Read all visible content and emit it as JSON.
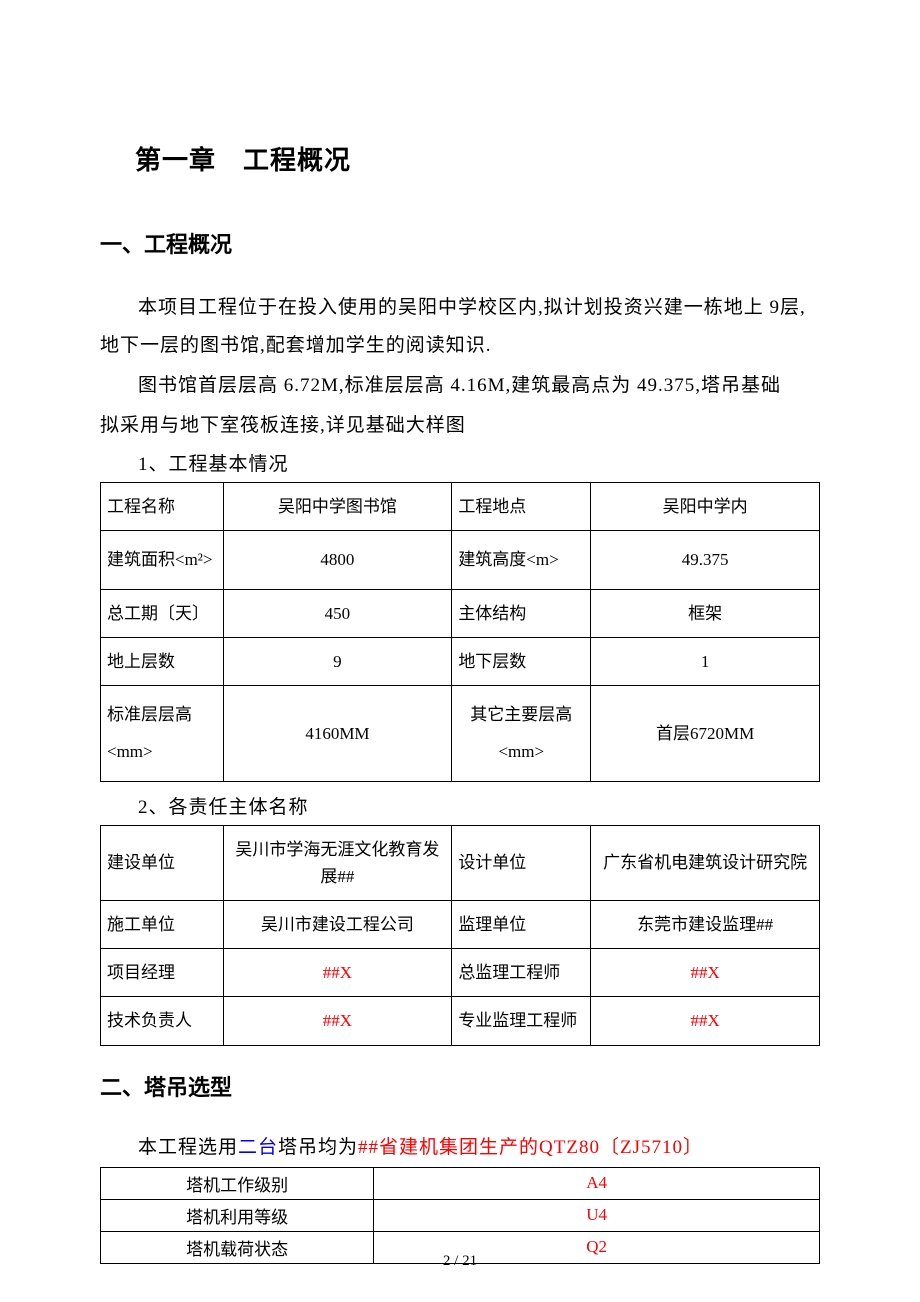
{
  "chapter": "第一章　工程概况",
  "s1": {
    "title": "一、工程概况",
    "p1": "本项目工程位于在投入使用的吴阳中学校区内,拟计划投资兴建一栋地上 9层,地下一层的图书馆,配套增加学生的阅读知识.",
    "p2a": "图书馆首层层高 6.72M,标准层层高 4.16M,建筑最高点为 49.375,塔吊基础",
    "p2b": "拟采用与地下室筏板连接,详见基础大样图",
    "sub1": "1、工程基本情况",
    "sub2": "2、各责任主体名称"
  },
  "t1": {
    "r1": {
      "l1": "工程名称",
      "v1": "吴阳中学图书馆",
      "l2": "工程地点",
      "v2": "吴阳中学内"
    },
    "r2": {
      "l1": "建筑面积<m²>",
      "v1": "4800",
      "l2": "建筑高度<m>",
      "v2": "49.375"
    },
    "r3": {
      "l1": "总工期〔天〕",
      "v1": "450",
      "l2": "主体结构",
      "v2": "框架"
    },
    "r4": {
      "l1": "地上层数",
      "v1": "9",
      "l2": "地下层数",
      "v2": "1"
    },
    "r5": {
      "l1": "标准层层高<mm>",
      "v1": "4160MM",
      "l2": "其它主要层高<mm>",
      "v2": "首层6720MM"
    }
  },
  "t2": {
    "r1": {
      "l1": "建设单位",
      "v1": "吴川市学海无涯文化教育发展##",
      "l2": "设计单位",
      "v2": "广东省机电建筑设计研究院"
    },
    "r2": {
      "l1": "施工单位",
      "v1": "吴川市建设工程公司",
      "l2": "监理单位",
      "v2": "东莞市建设监理##"
    },
    "r3": {
      "l1": "项目经理",
      "v1": "##X",
      "l2": "总监理工程师",
      "v2": "##X"
    },
    "r4": {
      "l1": "技术负责人",
      "v1": "##X",
      "l2": "专业监理工程师",
      "v2": "##X"
    }
  },
  "s2": {
    "title": "二、塔吊选型",
    "pre": "本工程选用",
    "blue": "二台",
    "mid": "塔吊均为",
    "red": "##省建机集团生产的QTZ80〔ZJ5710〕"
  },
  "t3": {
    "r1": {
      "l": "塔机工作级别",
      "v": "A4"
    },
    "r2": {
      "l": "塔机利用等级",
      "v": "U4"
    },
    "r3": {
      "l": "塔机载荷状态",
      "v": "Q2"
    }
  },
  "footer": "2 / 21",
  "colors": {
    "red": "#ff0000",
    "blue": "#0000ff",
    "text": "#000000",
    "bg": "#ffffff",
    "border": "#000000"
  },
  "fonts": {
    "body": "SimSun",
    "title_size": 26,
    "section_size": 22,
    "text_size": 19,
    "table_size": 17
  }
}
